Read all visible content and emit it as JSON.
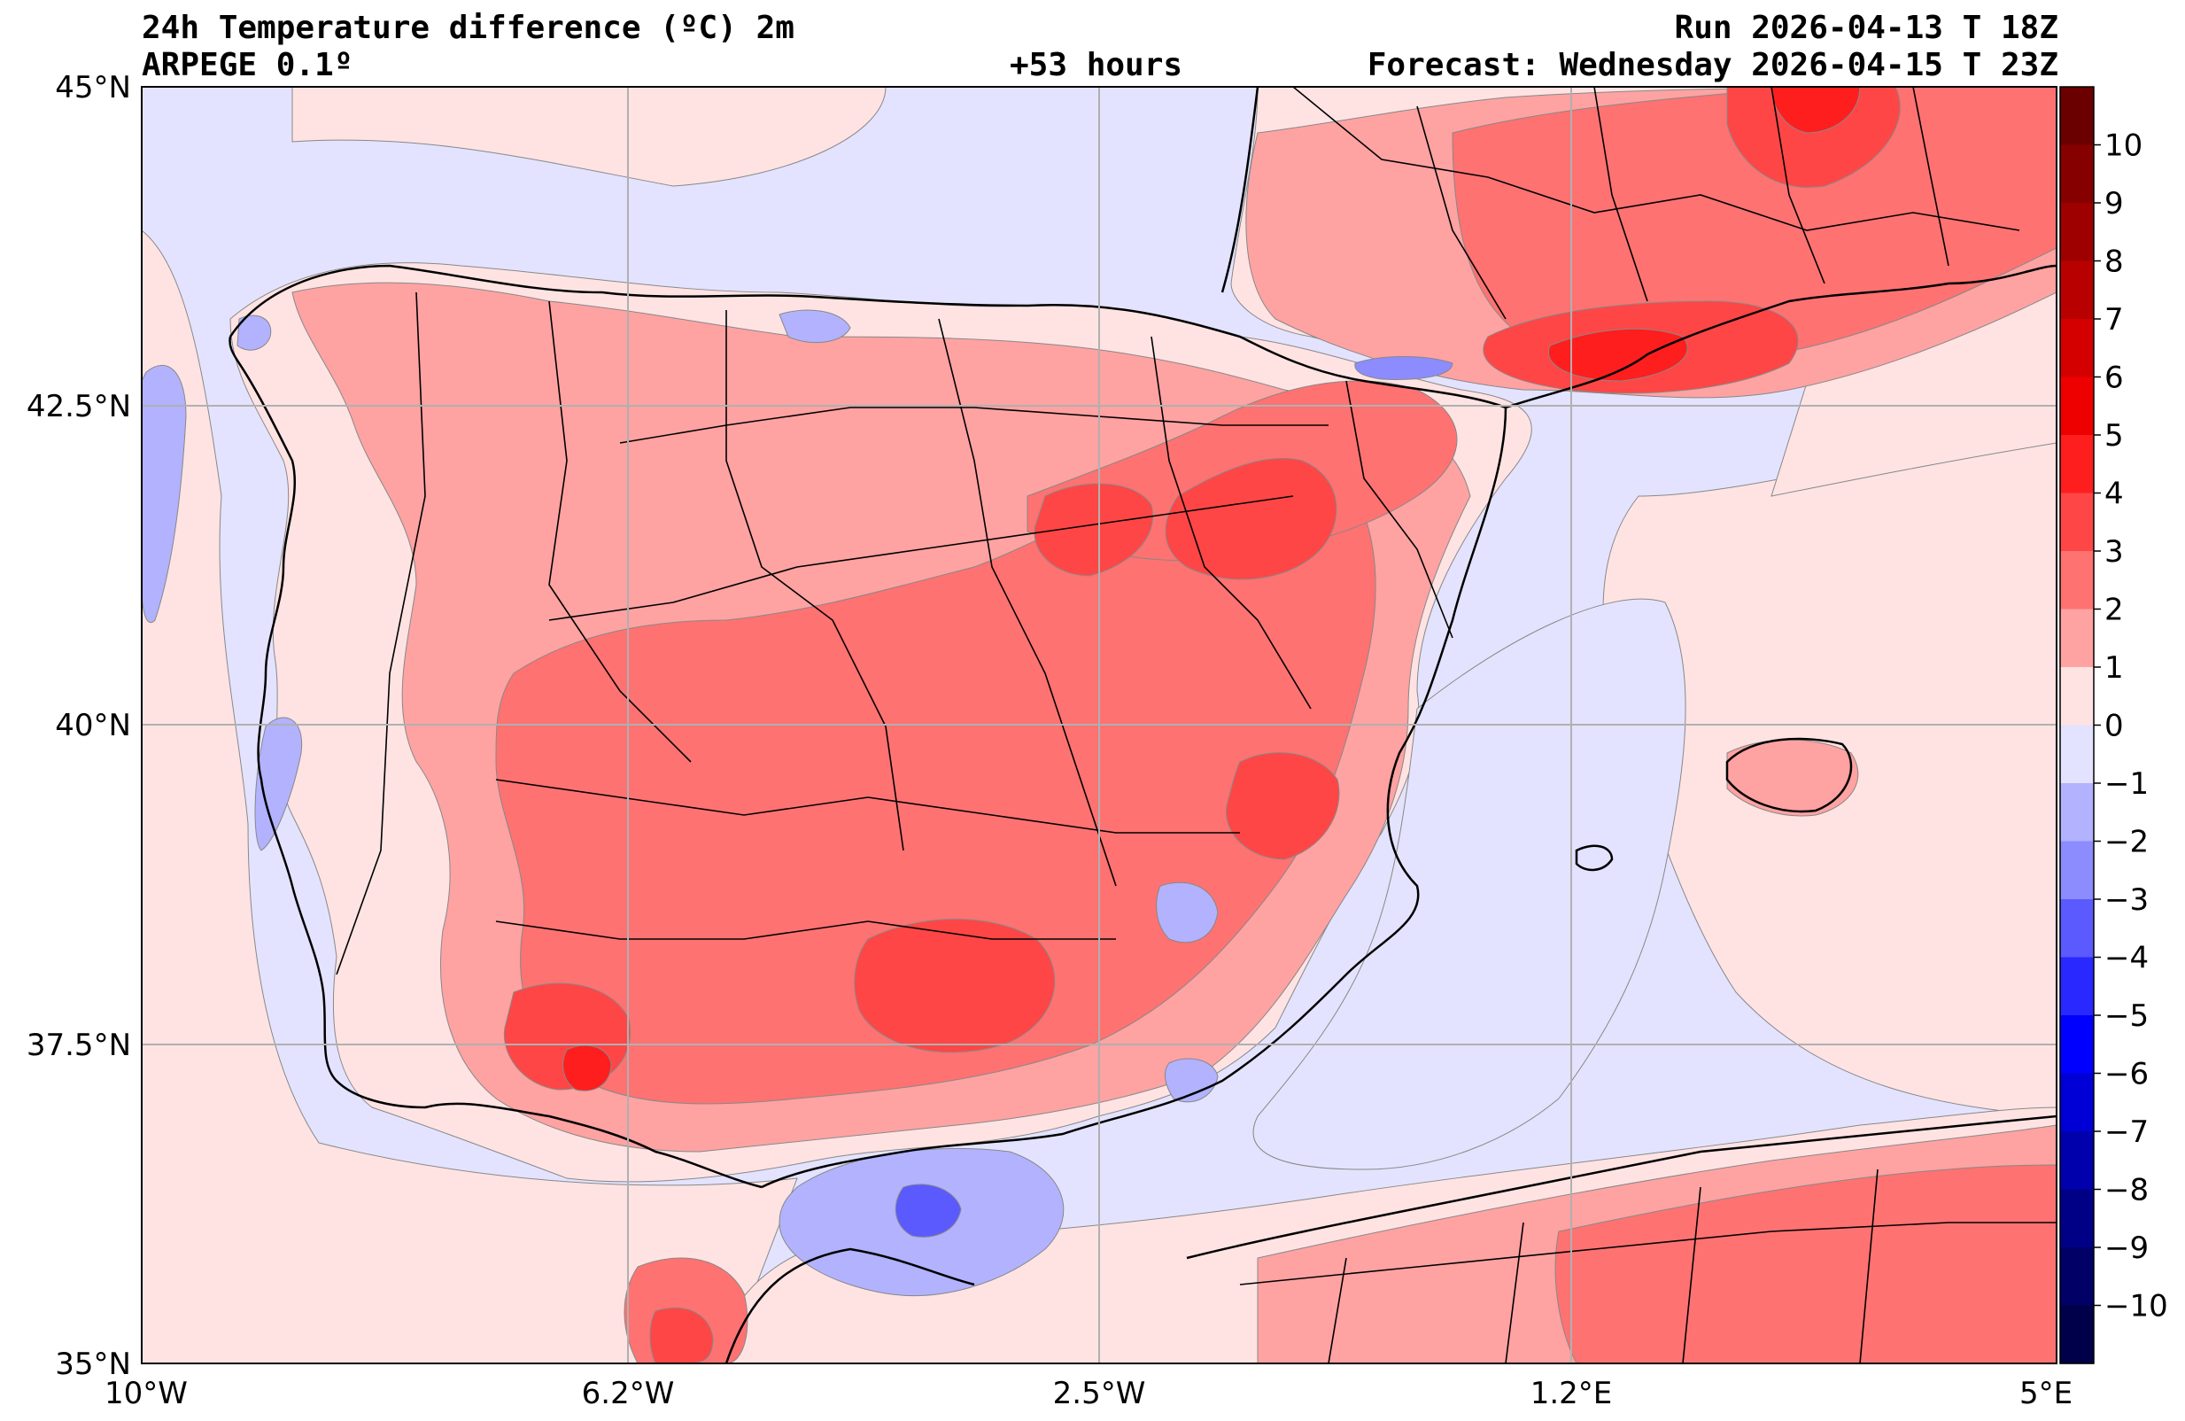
{
  "header": {
    "title": "24h Temperature difference (ºC) 2m",
    "model": "ARPEGE 0.1º",
    "lead_time": "+53 hours",
    "run": "Run 2026-04-13 T 18Z",
    "forecast": "Forecast: Wednesday 2026-04-15 T 23Z"
  },
  "axes": {
    "lat_labels": [
      "45°N",
      "42.5°N",
      "40°N",
      "37.5°N",
      "35°N"
    ],
    "lon_labels": [
      "10°W",
      "6.2°W",
      "2.5°W",
      "1.2°E",
      "5°E"
    ]
  },
  "colorbar": {
    "ticks": [
      "10",
      "9",
      "8",
      "7",
      "6",
      "5",
      "4",
      "3",
      "2",
      "1",
      "0",
      "−1",
      "−2",
      "−3",
      "−4",
      "−5",
      "−6",
      "−7",
      "−8",
      "−9",
      "−10"
    ],
    "levels_top_to_bottom": [
      {
        "range": ">10",
        "color": "#6b0000"
      },
      {
        "range": "9-10",
        "color": "#860000"
      },
      {
        "range": "8-9",
        "color": "#9e0000"
      },
      {
        "range": "7-8",
        "color": "#b80000"
      },
      {
        "range": "6-7",
        "color": "#d40000"
      },
      {
        "range": "5-6",
        "color": "#ee0000"
      },
      {
        "range": "4-5",
        "color": "#ff1e1e"
      },
      {
        "range": "3-4",
        "color": "#ff4646"
      },
      {
        "range": "2-3",
        "color": "#ff7272"
      },
      {
        "range": "1-2",
        "color": "#ffa2a2"
      },
      {
        "range": "0-1",
        "color": "#ffe3e3"
      },
      {
        "range": "-1-0",
        "color": "#e3e3ff"
      },
      {
        "range": "-2--1",
        "color": "#b2b2ff"
      },
      {
        "range": "-3--2",
        "color": "#8c8cff"
      },
      {
        "range": "-4--3",
        "color": "#5a5aff"
      },
      {
        "range": "-5--4",
        "color": "#2828ff"
      },
      {
        "range": "-6--5",
        "color": "#0000ff"
      },
      {
        "range": "-7--6",
        "color": "#0000d6"
      },
      {
        "range": "-8--7",
        "color": "#0000ad"
      },
      {
        "range": "-9--8",
        "color": "#000086"
      },
      {
        "range": "-10--9",
        "color": "#000066"
      },
      {
        "range": "<-10",
        "color": "#00004a"
      }
    ]
  },
  "colors": {
    "sea_neg": "#e3e3ff",
    "land_pos_light": "#ffe3e3",
    "pos1": "#ffa2a2",
    "pos2": "#ff7272",
    "pos3": "#ff4646",
    "pos4": "#ff1e1e",
    "neg1": "#b2b2ff",
    "neg2": "#8c8cff",
    "neg3": "#5a5aff"
  }
}
